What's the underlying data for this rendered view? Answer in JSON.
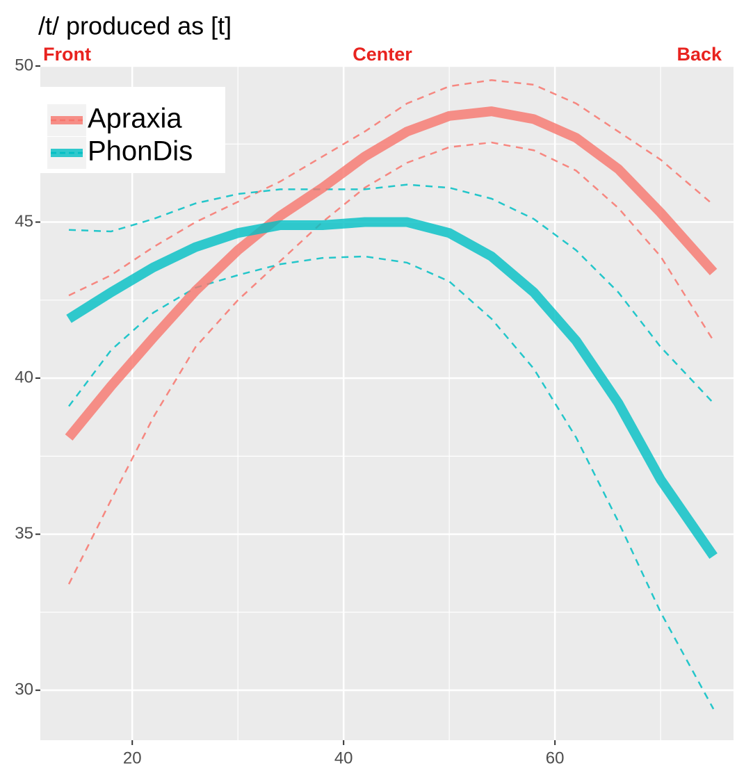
{
  "chart_data": {
    "type": "line",
    "title": "/t/ produced as [t]",
    "annotations": [
      "Front",
      "Center",
      "Back"
    ],
    "annotation_color": "#e8231f",
    "x": [
      14,
      18,
      22,
      26,
      30,
      34,
      38,
      42,
      46,
      50,
      54,
      58,
      62,
      66,
      70,
      75
    ],
    "series": [
      {
        "name": "Apraxia",
        "color": "#F8766D",
        "values": [
          38.1,
          39.75,
          41.3,
          42.8,
          44.1,
          45.2,
          46.1,
          47.1,
          47.9,
          48.4,
          48.55,
          48.3,
          47.7,
          46.7,
          45.3,
          43.4
        ],
        "upper": [
          42.65,
          43.3,
          44.2,
          45.0,
          45.65,
          46.3,
          47.1,
          47.9,
          48.8,
          49.35,
          49.55,
          49.4,
          48.8,
          47.9,
          47.0,
          45.55
        ],
        "lower": [
          33.4,
          36.1,
          38.75,
          41.0,
          42.5,
          43.75,
          45.0,
          46.1,
          46.9,
          47.4,
          47.55,
          47.3,
          46.65,
          45.45,
          43.9,
          41.2
        ]
      },
      {
        "name": "PhonDis",
        "color": "#00BFC4",
        "values": [
          41.9,
          42.75,
          43.55,
          44.2,
          44.65,
          44.9,
          44.9,
          45.0,
          45.0,
          44.65,
          43.9,
          42.75,
          41.2,
          39.2,
          36.75,
          34.3
        ],
        "upper": [
          44.75,
          44.7,
          45.1,
          45.6,
          45.9,
          46.05,
          46.05,
          46.05,
          46.2,
          46.1,
          45.75,
          45.1,
          44.1,
          42.75,
          41.0,
          39.2
        ],
        "lower": [
          39.1,
          40.9,
          42.1,
          42.9,
          43.3,
          43.65,
          43.85,
          43.9,
          43.7,
          43.1,
          41.9,
          40.3,
          38.1,
          35.4,
          32.5,
          29.4
        ]
      }
    ],
    "xlim": [
      11.3,
      76.9
    ],
    "ylim": [
      28.4,
      50.0
    ],
    "xticks": [
      20,
      40,
      60
    ],
    "yticks": [
      30,
      35,
      40,
      45,
      50
    ],
    "xminor": [
      30,
      50,
      70
    ],
    "yminor": [
      32.5,
      37.5,
      42.5,
      47.5
    ],
    "grid": true,
    "legend": "top-left"
  }
}
